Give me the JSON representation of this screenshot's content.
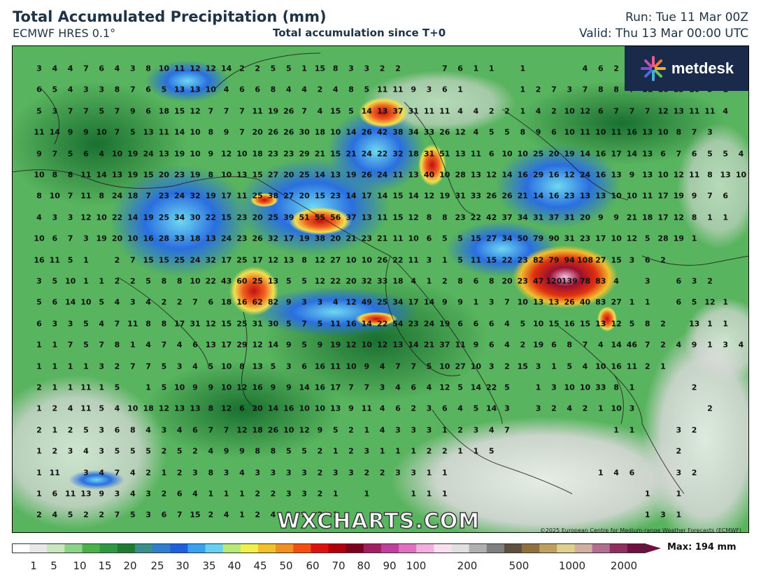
{
  "header": {
    "title": "Total Accumulated Precipitation (mm)",
    "model": "ECMWF HRES 0.1°",
    "accumulation": "Total accumulation since T+0",
    "run": "Run: Tue 11 Mar 00Z",
    "valid": "Valid: Thu 13 Mar 00:00 UTC"
  },
  "logo": {
    "text": "metdesk",
    "icon": "sunburst-logo-icon"
  },
  "watermark": "WXCHARTS.COM",
  "credit": "©2025 European Centre for Medium-range Weather Forecasts (ECMWF)",
  "scale": {
    "ticks": [
      "1",
      "5",
      "10",
      "15",
      "20",
      "25",
      "30",
      "35",
      "40",
      "45",
      "50",
      "60",
      "70",
      "80",
      "90",
      "100",
      "200",
      "500",
      "1000",
      "2000"
    ],
    "max_label": "Max: 194 mm",
    "colors": [
      "#ffffff",
      "#e8e8e8",
      "#c8e6c0",
      "#8fd08a",
      "#4cb050",
      "#2e9940",
      "#1f7a32",
      "#3a8f8a",
      "#2f7fd0",
      "#1e5fe0",
      "#3aa0f0",
      "#6ad0f0",
      "#b8e878",
      "#f0f050",
      "#f0c030",
      "#f09020",
      "#f05010",
      "#e01010",
      "#b00010",
      "#800020",
      "#a02060",
      "#c040a0",
      "#e070c0",
      "#f0b0e0",
      "#f8e0f0",
      "#e0e0e0",
      "#b0b0b0",
      "#808080",
      "#605040",
      "#907040",
      "#c0a060",
      "#e0d090",
      "#d0b0a0",
      "#b07090",
      "#903060",
      "#701040"
    ]
  },
  "grid_values": [
    [
      "3",
      "4",
      "4",
      "7",
      "6",
      "4",
      "3",
      "8",
      "10",
      "11",
      "12",
      "12",
      "14",
      "2",
      "2",
      "5",
      "5",
      "1",
      "15",
      "8",
      "3",
      "3",
      "2",
      "2",
      "",
      "",
      "7",
      "6",
      "1",
      "1",
      "",
      "1",
      "",
      "",
      "",
      "4",
      "6",
      "2",
      "5",
      "8"
    ],
    [
      "6",
      "5",
      "4",
      "3",
      "3",
      "8",
      "7",
      "6",
      "5",
      "13",
      "13",
      "10",
      "4",
      "6",
      "6",
      "8",
      "4",
      "4",
      "2",
      "4",
      "8",
      "5",
      "11",
      "11",
      "9",
      "3",
      "6",
      "1",
      "",
      "",
      "",
      "1",
      "2",
      "7",
      "3",
      "7",
      "8",
      "8",
      "7",
      "11",
      "16",
      "13",
      "10",
      "5",
      "1"
    ],
    [
      "5",
      "3",
      "7",
      "7",
      "5",
      "7",
      "9",
      "6",
      "18",
      "15",
      "12",
      "7",
      "7",
      "7",
      "11",
      "19",
      "26",
      "7",
      "4",
      "15",
      "5",
      "14",
      "13",
      "37",
      "31",
      "11",
      "11",
      "4",
      "4",
      "2",
      "2",
      "1",
      "4",
      "2",
      "10",
      "12",
      "6",
      "7",
      "7",
      "7",
      "12",
      "13",
      "11",
      "11",
      "4"
    ],
    [
      "11",
      "14",
      "9",
      "9",
      "10",
      "7",
      "5",
      "13",
      "11",
      "14",
      "10",
      "8",
      "9",
      "7",
      "20",
      "26",
      "26",
      "30",
      "18",
      "10",
      "14",
      "26",
      "42",
      "38",
      "34",
      "33",
      "26",
      "12",
      "4",
      "5",
      "5",
      "8",
      "9",
      "6",
      "10",
      "11",
      "10",
      "11",
      "16",
      "13",
      "10",
      "8",
      "7",
      "3"
    ],
    [
      "9",
      "7",
      "5",
      "6",
      "4",
      "10",
      "19",
      "24",
      "13",
      "19",
      "10",
      "9",
      "12",
      "10",
      "18",
      "23",
      "23",
      "29",
      "21",
      "15",
      "21",
      "24",
      "22",
      "32",
      "18",
      "31",
      "51",
      "13",
      "11",
      "6",
      "10",
      "10",
      "25",
      "20",
      "19",
      "14",
      "16",
      "17",
      "14",
      "13",
      "6",
      "7",
      "6",
      "5",
      "5",
      "4"
    ],
    [
      "10",
      "8",
      "8",
      "11",
      "14",
      "13",
      "19",
      "15",
      "20",
      "23",
      "19",
      "8",
      "10",
      "13",
      "15",
      "27",
      "20",
      "25",
      "14",
      "13",
      "19",
      "26",
      "24",
      "11",
      "13",
      "40",
      "10",
      "28",
      "13",
      "12",
      "14",
      "16",
      "29",
      "16",
      "12",
      "24",
      "16",
      "13",
      "9",
      "13",
      "10",
      "12",
      "11",
      "8",
      "13",
      "10"
    ],
    [
      "8",
      "10",
      "7",
      "11",
      "8",
      "24",
      "18",
      "7",
      "23",
      "24",
      "32",
      "19",
      "17",
      "11",
      "25",
      "38",
      "27",
      "20",
      "15",
      "23",
      "14",
      "17",
      "14",
      "15",
      "14",
      "12",
      "19",
      "31",
      "33",
      "26",
      "26",
      "21",
      "14",
      "16",
      "23",
      "13",
      "13",
      "10",
      "10",
      "11",
      "17",
      "19",
      "9",
      "7",
      "6"
    ],
    [
      "4",
      "3",
      "3",
      "12",
      "10",
      "22",
      "14",
      "19",
      "25",
      "34",
      "30",
      "22",
      "15",
      "23",
      "20",
      "25",
      "39",
      "51",
      "55",
      "56",
      "37",
      "13",
      "11",
      "15",
      "12",
      "8",
      "8",
      "23",
      "22",
      "42",
      "37",
      "34",
      "31",
      "37",
      "31",
      "20",
      "9",
      "9",
      "21",
      "18",
      "17",
      "12",
      "8",
      "1",
      "1"
    ],
    [
      "10",
      "6",
      "7",
      "3",
      "19",
      "20",
      "10",
      "16",
      "28",
      "33",
      "18",
      "13",
      "24",
      "23",
      "26",
      "32",
      "17",
      "19",
      "38",
      "20",
      "21",
      "23",
      "21",
      "11",
      "10",
      "6",
      "5",
      "5",
      "15",
      "27",
      "34",
      "50",
      "79",
      "90",
      "31",
      "23",
      "17",
      "10",
      "12",
      "5",
      "28",
      "19",
      "1"
    ],
    [
      "16",
      "11",
      "5",
      "1",
      "",
      "2",
      "7",
      "15",
      "15",
      "25",
      "24",
      "32",
      "17",
      "25",
      "17",
      "12",
      "13",
      "8",
      "12",
      "27",
      "10",
      "10",
      "26",
      "22",
      "11",
      "3",
      "1",
      "5",
      "11",
      "15",
      "22",
      "23",
      "82",
      "79",
      "94",
      "108",
      "27",
      "15",
      "3",
      "6",
      "2"
    ],
    [
      "3",
      "5",
      "10",
      "1",
      "1",
      "2",
      "2",
      "5",
      "8",
      "8",
      "10",
      "22",
      "43",
      "60",
      "25",
      "13",
      "5",
      "5",
      "12",
      "22",
      "20",
      "32",
      "33",
      "18",
      "4",
      "1",
      "2",
      "8",
      "6",
      "8",
      "20",
      "23",
      "47",
      "120",
      "139",
      "78",
      "83",
      "4",
      "",
      "3",
      "",
      "6",
      "3",
      "2"
    ],
    [
      "5",
      "6",
      "14",
      "10",
      "5",
      "4",
      "3",
      "4",
      "2",
      "2",
      "7",
      "6",
      "18",
      "16",
      "62",
      "82",
      "9",
      "3",
      "3",
      "4",
      "12",
      "49",
      "25",
      "34",
      "17",
      "14",
      "9",
      "9",
      "1",
      "3",
      "7",
      "10",
      "13",
      "13",
      "26",
      "40",
      "83",
      "27",
      "1",
      "1",
      "",
      "6",
      "5",
      "12",
      "1"
    ],
    [
      "6",
      "3",
      "3",
      "5",
      "4",
      "7",
      "11",
      "8",
      "8",
      "17",
      "31",
      "12",
      "15",
      "25",
      "31",
      "30",
      "5",
      "7",
      "5",
      "11",
      "16",
      "14",
      "22",
      "54",
      "23",
      "24",
      "19",
      "6",
      "6",
      "6",
      "4",
      "5",
      "10",
      "15",
      "16",
      "15",
      "13",
      "12",
      "5",
      "8",
      "2",
      "",
      "13",
      "1",
      "1"
    ],
    [
      "1",
      "1",
      "7",
      "5",
      "7",
      "8",
      "1",
      "4",
      "7",
      "4",
      "6",
      "13",
      "17",
      "29",
      "12",
      "14",
      "9",
      "5",
      "9",
      "19",
      "12",
      "10",
      "12",
      "13",
      "14",
      "21",
      "37",
      "11",
      "9",
      "6",
      "4",
      "2",
      "19",
      "6",
      "8",
      "7",
      "4",
      "14",
      "46",
      "7",
      "2",
      "4",
      "9",
      "1",
      "3",
      "4"
    ],
    [
      "1",
      "1",
      "1",
      "1",
      "3",
      "2",
      "7",
      "7",
      "5",
      "3",
      "4",
      "5",
      "10",
      "8",
      "13",
      "5",
      "3",
      "6",
      "16",
      "11",
      "10",
      "9",
      "4",
      "7",
      "7",
      "5",
      "10",
      "27",
      "10",
      "3",
      "2",
      "15",
      "3",
      "1",
      "5",
      "4",
      "10",
      "16",
      "11",
      "2",
      "1"
    ],
    [
      "2",
      "1",
      "1",
      "11",
      "1",
      "5",
      "",
      "1",
      "5",
      "10",
      "9",
      "9",
      "10",
      "12",
      "16",
      "9",
      "9",
      "14",
      "16",
      "17",
      "7",
      "7",
      "3",
      "4",
      "6",
      "4",
      "12",
      "5",
      "14",
      "22",
      "5",
      "",
      "1",
      "3",
      "10",
      "10",
      "33",
      "8",
      "1",
      "",
      "",
      "",
      "2"
    ],
    [
      "1",
      "2",
      "4",
      "11",
      "5",
      "4",
      "10",
      "18",
      "12",
      "13",
      "13",
      "8",
      "12",
      "6",
      "20",
      "14",
      "16",
      "10",
      "10",
      "13",
      "9",
      "11",
      "4",
      "6",
      "2",
      "3",
      "6",
      "4",
      "5",
      "14",
      "3",
      "",
      "3",
      "2",
      "4",
      "2",
      "1",
      "10",
      "3",
      "",
      "",
      "",
      "",
      "2"
    ],
    [
      "2",
      "1",
      "2",
      "5",
      "3",
      "6",
      "8",
      "4",
      "3",
      "4",
      "6",
      "7",
      "7",
      "12",
      "18",
      "26",
      "10",
      "12",
      "9",
      "5",
      "2",
      "1",
      "4",
      "3",
      "3",
      "3",
      "1",
      "2",
      "3",
      "4",
      "7",
      "",
      "",
      "",
      "",
      "",
      "",
      "1",
      "1",
      "",
      "",
      "3",
      "2"
    ],
    [
      "1",
      "2",
      "3",
      "4",
      "3",
      "5",
      "5",
      "5",
      "2",
      "5",
      "2",
      "4",
      "9",
      "9",
      "8",
      "8",
      "5",
      "5",
      "2",
      "1",
      "2",
      "3",
      "1",
      "1",
      "1",
      "2",
      "2",
      "1",
      "1",
      "5",
      "",
      "",
      "",
      "",
      "",
      "",
      "",
      "",
      "",
      "",
      "",
      "2"
    ],
    [
      "1",
      "11",
      "",
      "3",
      "4",
      "7",
      "4",
      "2",
      "1",
      "2",
      "3",
      "8",
      "3",
      "4",
      "3",
      "3",
      "3",
      "3",
      "2",
      "3",
      "3",
      "2",
      "2",
      "3",
      "3",
      "1",
      "1",
      "",
      "",
      "",
      "",
      "",
      "",
      "",
      "",
      "",
      "1",
      "4",
      "6",
      "",
      "",
      "3",
      "2"
    ],
    [
      "1",
      "6",
      "11",
      "13",
      "9",
      "3",
      "4",
      "3",
      "2",
      "6",
      "4",
      "1",
      "1",
      "1",
      "2",
      "2",
      "3",
      "3",
      "2",
      "1",
      "",
      "1",
      "",
      "",
      "1",
      "1",
      "1",
      "",
      "",
      "",
      "",
      "",
      "",
      "",
      "",
      "",
      "",
      "",
      "",
      "1",
      "",
      "1"
    ],
    [
      "2",
      "4",
      "5",
      "2",
      "2",
      "7",
      "5",
      "3",
      "6",
      "7",
      "15",
      "2",
      "4",
      "1",
      "2",
      "4",
      "2",
      "3",
      "2",
      "1",
      "",
      "",
      "",
      "",
      "",
      "",
      "",
      "",
      "",
      "",
      "",
      "",
      "",
      "",
      "",
      "",
      "",
      "",
      "",
      "1",
      "3",
      "1"
    ]
  ]
}
